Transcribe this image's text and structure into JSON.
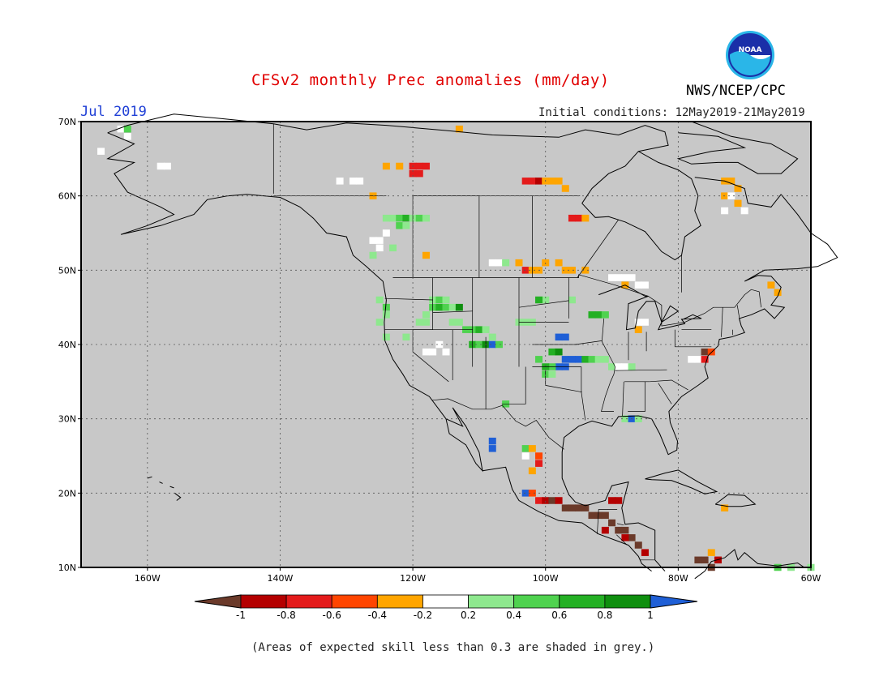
{
  "header": {
    "title": "CFSv2 monthly Prec anomalies (mm/day)",
    "agency": "NWS/NCEP/CPC",
    "logo_text": "NOAA",
    "forecast_month": "Jul 2019",
    "initial_conditions": "Initial conditions: 12May2019-21May2019"
  },
  "map": {
    "projection": "lat-lon",
    "lon_range": [
      -170,
      -60
    ],
    "lat_range": [
      10,
      70
    ],
    "background_color": "#c8c8c8",
    "grid": true,
    "lat_labels": [
      "70N",
      "60N",
      "50N",
      "40N",
      "30N",
      "20N",
      "10N"
    ],
    "lon_labels": [
      "160W",
      "140W",
      "120W",
      "100W",
      "80W",
      "60W"
    ]
  },
  "colorbar": {
    "labels": [
      "-1",
      "-0.8",
      "-0.6",
      "-0.4",
      "-0.2",
      "0.2",
      "0.4",
      "0.6",
      "0.8",
      "1"
    ],
    "colors": [
      "#6b3a2a",
      "#b40000",
      "#e41b1b",
      "#ff4500",
      "#ffa500",
      "#ffffff",
      "#8ee88e",
      "#4fd24f",
      "#24b024",
      "#0f8f0f",
      "#1f5fd6"
    ]
  },
  "footnote": "(Areas of expected skill less than 0.3 are shaded in grey.)"
}
